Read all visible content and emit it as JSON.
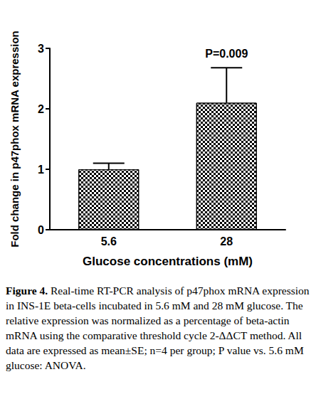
{
  "chart_data": {
    "type": "bar",
    "x_label": "Glucose concentrations (mM)",
    "y_label": "Fold change in p47phox mRNA expression",
    "categories": [
      "5.6",
      "28"
    ],
    "values": [
      1.0,
      2.1
    ],
    "errors": [
      0.1,
      0.58
    ],
    "color": "#000000",
    "ylim": [
      0,
      3
    ],
    "yticks": [
      0,
      1,
      2,
      3
    ],
    "grid": false,
    "annotations": [
      {
        "text": "P=0.009",
        "category": "28"
      }
    ]
  },
  "caption": {
    "label": "Figure 4.",
    "text": "Real-time RT-PCR analysis of p47phox mRNA expression in INS-1E beta-cells incubated in 5.6 mM and 28 mM glucose. The relative expression was normalized as a percentage of beta-actin mRNA using the comparative threshold cycle 2-ΔΔCT method. All data are expressed as mean±SE; n=4 per group; P value vs. 5.6 mM glucose: ANOVA."
  }
}
